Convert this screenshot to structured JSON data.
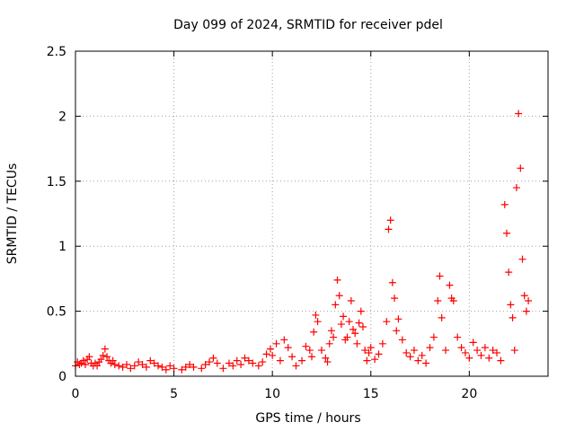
{
  "chart_data": {
    "type": "scatter",
    "title": "Day 099 of 2024, SRMTID for receiver pdel",
    "xlabel": "GPS time / hours",
    "ylabel": "SRMTID / TECUs",
    "xlim": [
      0,
      24
    ],
    "ylim": [
      0,
      2.5
    ],
    "x_ticks": [
      0,
      5,
      10,
      15,
      20
    ],
    "y_ticks": [
      0,
      0.5,
      1,
      1.5,
      2,
      2.5
    ],
    "x_tick_labels": [
      "0",
      "5",
      "10",
      "15",
      "20"
    ],
    "y_tick_labels": [
      "0",
      "0.5",
      "1",
      "1.5",
      "2",
      "2.5"
    ],
    "grid": true,
    "marker": "plus",
    "color": "#ff0000",
    "series": [
      {
        "name": "SRMTID",
        "points": [
          [
            0.0,
            0.08
          ],
          [
            0.1,
            0.11
          ],
          [
            0.2,
            0.09
          ],
          [
            0.3,
            0.1
          ],
          [
            0.4,
            0.12
          ],
          [
            0.5,
            0.09
          ],
          [
            0.6,
            0.13
          ],
          [
            0.7,
            0.15
          ],
          [
            0.8,
            0.1
          ],
          [
            0.9,
            0.08
          ],
          [
            1.0,
            0.1
          ],
          [
            1.1,
            0.08
          ],
          [
            1.2,
            0.11
          ],
          [
            1.3,
            0.13
          ],
          [
            1.4,
            0.16
          ],
          [
            1.5,
            0.21
          ],
          [
            1.6,
            0.15
          ],
          [
            1.7,
            0.12
          ],
          [
            1.8,
            0.1
          ],
          [
            1.9,
            0.12
          ],
          [
            2.0,
            0.09
          ],
          [
            2.2,
            0.08
          ],
          [
            2.4,
            0.07
          ],
          [
            2.6,
            0.09
          ],
          [
            2.8,
            0.06
          ],
          [
            3.0,
            0.08
          ],
          [
            3.2,
            0.11
          ],
          [
            3.4,
            0.09
          ],
          [
            3.6,
            0.07
          ],
          [
            3.8,
            0.12
          ],
          [
            4.0,
            0.1
          ],
          [
            4.2,
            0.08
          ],
          [
            4.4,
            0.07
          ],
          [
            4.6,
            0.05
          ],
          [
            4.8,
            0.08
          ],
          [
            5.0,
            0.06
          ],
          [
            5.4,
            0.05
          ],
          [
            5.6,
            0.07
          ],
          [
            5.8,
            0.09
          ],
          [
            6.0,
            0.07
          ],
          [
            6.4,
            0.06
          ],
          [
            6.6,
            0.09
          ],
          [
            6.8,
            0.11
          ],
          [
            7.0,
            0.14
          ],
          [
            7.2,
            0.1
          ],
          [
            7.5,
            0.06
          ],
          [
            7.8,
            0.1
          ],
          [
            8.0,
            0.08
          ],
          [
            8.2,
            0.12
          ],
          [
            8.4,
            0.09
          ],
          [
            8.6,
            0.14
          ],
          [
            8.8,
            0.12
          ],
          [
            9.0,
            0.1
          ],
          [
            9.3,
            0.08
          ],
          [
            9.5,
            0.11
          ],
          [
            9.7,
            0.17
          ],
          [
            9.9,
            0.21
          ],
          [
            10.0,
            0.16
          ],
          [
            10.2,
            0.25
          ],
          [
            10.4,
            0.12
          ],
          [
            10.6,
            0.28
          ],
          [
            10.8,
            0.22
          ],
          [
            11.0,
            0.15
          ],
          [
            11.2,
            0.08
          ],
          [
            11.5,
            0.12
          ],
          [
            11.7,
            0.23
          ],
          [
            11.9,
            0.2
          ],
          [
            12.0,
            0.15
          ],
          [
            12.1,
            0.34
          ],
          [
            12.2,
            0.47
          ],
          [
            12.3,
            0.42
          ],
          [
            12.5,
            0.2
          ],
          [
            12.7,
            0.14
          ],
          [
            12.8,
            0.11
          ],
          [
            12.9,
            0.25
          ],
          [
            13.0,
            0.35
          ],
          [
            13.1,
            0.3
          ],
          [
            13.2,
            0.55
          ],
          [
            13.3,
            0.74
          ],
          [
            13.4,
            0.62
          ],
          [
            13.5,
            0.4
          ],
          [
            13.6,
            0.46
          ],
          [
            13.7,
            0.28
          ],
          [
            13.8,
            0.3
          ],
          [
            13.9,
            0.42
          ],
          [
            14.0,
            0.58
          ],
          [
            14.1,
            0.36
          ],
          [
            14.2,
            0.33
          ],
          [
            14.3,
            0.25
          ],
          [
            14.4,
            0.41
          ],
          [
            14.5,
            0.5
          ],
          [
            14.6,
            0.38
          ],
          [
            14.7,
            0.2
          ],
          [
            14.8,
            0.12
          ],
          [
            14.9,
            0.18
          ],
          [
            15.0,
            0.22
          ],
          [
            15.2,
            0.13
          ],
          [
            15.4,
            0.17
          ],
          [
            15.6,
            0.25
          ],
          [
            15.8,
            0.42
          ],
          [
            15.9,
            1.13
          ],
          [
            16.0,
            1.2
          ],
          [
            16.1,
            0.72
          ],
          [
            16.2,
            0.6
          ],
          [
            16.3,
            0.35
          ],
          [
            16.4,
            0.44
          ],
          [
            16.6,
            0.28
          ],
          [
            16.8,
            0.18
          ],
          [
            17.0,
            0.15
          ],
          [
            17.2,
            0.2
          ],
          [
            17.4,
            0.12
          ],
          [
            17.6,
            0.16
          ],
          [
            17.8,
            0.1
          ],
          [
            18.0,
            0.22
          ],
          [
            18.2,
            0.3
          ],
          [
            18.4,
            0.58
          ],
          [
            18.5,
            0.77
          ],
          [
            18.6,
            0.45
          ],
          [
            18.8,
            0.2
          ],
          [
            19.0,
            0.7
          ],
          [
            19.1,
            0.6
          ],
          [
            19.2,
            0.58
          ],
          [
            19.4,
            0.3
          ],
          [
            19.6,
            0.22
          ],
          [
            19.8,
            0.18
          ],
          [
            20.0,
            0.14
          ],
          [
            20.2,
            0.26
          ],
          [
            20.4,
            0.2
          ],
          [
            20.6,
            0.16
          ],
          [
            20.8,
            0.22
          ],
          [
            21.0,
            0.14
          ],
          [
            21.2,
            0.2
          ],
          [
            21.4,
            0.18
          ],
          [
            21.6,
            0.12
          ],
          [
            21.8,
            1.32
          ],
          [
            21.9,
            1.1
          ],
          [
            22.0,
            0.8
          ],
          [
            22.1,
            0.55
          ],
          [
            22.2,
            0.45
          ],
          [
            22.3,
            0.2
          ],
          [
            22.4,
            1.45
          ],
          [
            22.5,
            2.02
          ],
          [
            22.6,
            1.6
          ],
          [
            22.7,
            0.9
          ],
          [
            22.8,
            0.62
          ],
          [
            22.9,
            0.5
          ],
          [
            23.0,
            0.58
          ]
        ]
      }
    ]
  }
}
